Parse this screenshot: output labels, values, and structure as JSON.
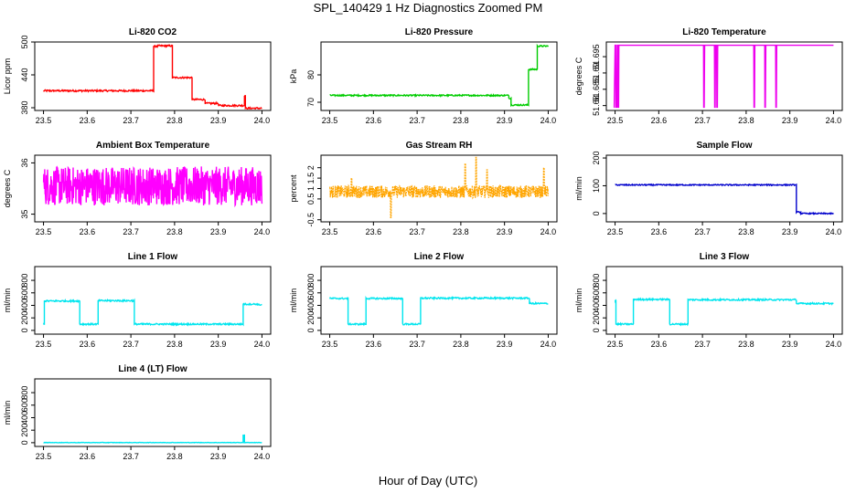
{
  "title": "SPL_140429  1 Hz Diagnostics Zoomed PM",
  "xlabel": "Hour of Day (UTC)",
  "chart_data": [
    {
      "id": "co2",
      "type": "line",
      "title": "Li-820 CO2",
      "ylabel": "Licor ppm",
      "color": "#ff0000",
      "xlim": [
        23.48,
        24.02
      ],
      "ylim": [
        375,
        500
      ],
      "yticks": [
        380,
        440,
        500
      ],
      "xticks": [
        23.5,
        23.6,
        23.7,
        23.8,
        23.9,
        24.0
      ],
      "noise": 1.5,
      "segments": [
        [
          23.5,
          23.752,
          411
        ],
        [
          23.752,
          23.76,
          492
        ],
        [
          23.76,
          23.795,
          493
        ],
        [
          23.795,
          23.84,
          435
        ],
        [
          23.84,
          23.87,
          395
        ],
        [
          23.87,
          23.9,
          388
        ],
        [
          23.9,
          23.96,
          384
        ],
        [
          23.96,
          23.962,
          402
        ],
        [
          23.962,
          24.0,
          379
        ]
      ]
    },
    {
      "id": "pressure",
      "type": "line",
      "title": "Li-820 Pressure",
      "ylabel": "kPa",
      "color": "#00cc00",
      "xlim": [
        23.48,
        24.02
      ],
      "ylim": [
        67,
        92
      ],
      "yticks": [
        70,
        80
      ],
      "xticks": [
        23.5,
        23.6,
        23.7,
        23.8,
        23.9,
        24.0
      ],
      "noise": 0.25,
      "segments": [
        [
          23.5,
          23.91,
          72.5
        ],
        [
          23.91,
          23.915,
          71.5
        ],
        [
          23.915,
          23.955,
          69
        ],
        [
          23.955,
          23.975,
          82
        ],
        [
          23.975,
          24.0,
          90.5
        ]
      ]
    },
    {
      "id": "licor_temp",
      "type": "line",
      "title": "Li-820 Temperature",
      "ylabel": "degrees C",
      "color": "#ee00ee",
      "xlim": [
        23.48,
        24.02
      ],
      "ylim": [
        51.6785,
        51.6995
      ],
      "yticks": [
        51.68,
        51.685,
        51.69,
        51.695
      ],
      "xticks": [
        23.5,
        23.6,
        23.7,
        23.8,
        23.9,
        24.0
      ],
      "baseline": 51.6985,
      "low": 51.6795,
      "dips": [
        23.497,
        23.502,
        23.503,
        23.507,
        23.703,
        23.728,
        23.733,
        23.818,
        23.843,
        23.868
      ]
    },
    {
      "id": "box_temp",
      "type": "line",
      "title": "Ambient Box Temperature",
      "ylabel": "degrees C",
      "color": "#ff00ff",
      "xlim": [
        23.48,
        24.02
      ],
      "ylim": [
        34.85,
        36.15
      ],
      "yticks": [
        35.0,
        36.0
      ],
      "xticks": [
        23.5,
        23.6,
        23.7,
        23.8,
        23.9,
        24.0
      ],
      "mean": 35.55,
      "noise": 0.38
    },
    {
      "id": "rh",
      "type": "line",
      "title": "Gas Stream RH",
      "ylabel": "percent",
      "color": "#ffa500",
      "xlim": [
        23.48,
        24.02
      ],
      "ylim": [
        -0.6,
        2.6
      ],
      "yticks": [
        -0.5,
        0.5,
        1.0,
        1.5,
        2.0
      ],
      "xticks": [
        23.5,
        23.6,
        23.7,
        23.8,
        23.9,
        24.0
      ],
      "mean": 0.85,
      "noise": 0.3,
      "spikes": [
        [
          23.55,
          1.5
        ],
        [
          23.64,
          -0.4
        ],
        [
          23.81,
          2.2
        ],
        [
          23.835,
          2.5
        ],
        [
          23.86,
          1.9
        ],
        [
          23.99,
          2.0
        ]
      ]
    },
    {
      "id": "sample_flow",
      "type": "line",
      "title": "Sample Flow",
      "ylabel": "ml/min",
      "color": "#0000cc",
      "xlim": [
        23.48,
        24.02
      ],
      "ylim": [
        -30,
        210
      ],
      "yticks": [
        0,
        100,
        200
      ],
      "xticks": [
        23.5,
        23.6,
        23.7,
        23.8,
        23.9,
        24.0
      ],
      "noise": 2,
      "segments": [
        [
          23.5,
          23.915,
          103
        ],
        [
          23.915,
          23.925,
          5
        ],
        [
          23.925,
          24.0,
          0
        ]
      ]
    },
    {
      "id": "line1",
      "type": "line",
      "title": "Line 1 Flow",
      "ylabel": "ml/min",
      "color": "#00e5ee",
      "xlim": [
        23.48,
        24.02
      ],
      "ylim": [
        -60,
        1020
      ],
      "yticks": [
        0,
        200,
        400,
        600,
        800
      ],
      "xticks": [
        23.5,
        23.6,
        23.7,
        23.8,
        23.9,
        24.0
      ],
      "noise": 12,
      "segments": [
        [
          23.5,
          23.502,
          100
        ],
        [
          23.502,
          23.583,
          470
        ],
        [
          23.583,
          23.625,
          100
        ],
        [
          23.625,
          23.708,
          475
        ],
        [
          23.708,
          23.957,
          100
        ],
        [
          23.957,
          23.99,
          420
        ],
        [
          23.99,
          24.0,
          410
        ]
      ]
    },
    {
      "id": "line2",
      "type": "line",
      "title": "Line 2 Flow",
      "ylabel": "ml/min",
      "color": "#00e5ee",
      "xlim": [
        23.48,
        24.02
      ],
      "ylim": [
        -60,
        1020
      ],
      "yticks": [
        0,
        200,
        400,
        600,
        800
      ],
      "xticks": [
        23.5,
        23.6,
        23.7,
        23.8,
        23.9,
        24.0
      ],
      "noise": 12,
      "segments": [
        [
          23.5,
          23.542,
          510
        ],
        [
          23.542,
          23.583,
          100
        ],
        [
          23.583,
          23.667,
          510
        ],
        [
          23.667,
          23.708,
          100
        ],
        [
          23.708,
          23.957,
          515
        ],
        [
          23.957,
          24.0,
          430
        ]
      ]
    },
    {
      "id": "line3",
      "type": "line",
      "title": "Line 3 Flow",
      "ylabel": "ml/min",
      "color": "#00e5ee",
      "xlim": [
        23.48,
        24.02
      ],
      "ylim": [
        -60,
        1020
      ],
      "yticks": [
        0,
        200,
        400,
        600,
        800
      ],
      "xticks": [
        23.5,
        23.6,
        23.7,
        23.8,
        23.9,
        24.0
      ],
      "noise": 12,
      "segments": [
        [
          23.5,
          23.502,
          480
        ],
        [
          23.502,
          23.542,
          100
        ],
        [
          23.542,
          23.625,
          495
        ],
        [
          23.625,
          23.667,
          100
        ],
        [
          23.667,
          23.915,
          490
        ],
        [
          23.915,
          24.0,
          430
        ]
      ]
    },
    {
      "id": "line4",
      "type": "line",
      "title": "Line 4 (LT) Flow",
      "ylabel": "ml/min",
      "color": "#00e5ee",
      "xlim": [
        23.48,
        24.02
      ],
      "ylim": [
        -60,
        1020
      ],
      "yticks": [
        0,
        200,
        400,
        600,
        800
      ],
      "xticks": [
        23.5,
        23.6,
        23.7,
        23.8,
        23.9,
        24.0
      ],
      "noise": 3,
      "segments": [
        [
          23.5,
          23.957,
          2
        ],
        [
          23.957,
          23.96,
          120
        ],
        [
          23.96,
          24.0,
          2
        ]
      ]
    }
  ]
}
